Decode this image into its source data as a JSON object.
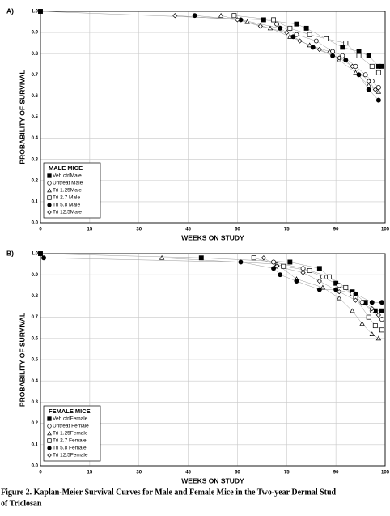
{
  "chart_data": [
    {
      "type": "scatter",
      "label": "A)",
      "xlabel": "WEEKS ON STUDY",
      "ylabel": "PROBABILITY OF SURVIVAL",
      "legend_title": "MALE MICE",
      "legend": "lower left",
      "grid": true,
      "xlim": [
        0,
        105
      ],
      "xticks": [
        0,
        15,
        30,
        45,
        60,
        75,
        90,
        105
      ],
      "ylim": [
        0,
        1
      ],
      "yticks": [
        {
          "value": 0,
          "label": "0.0"
        },
        0.1,
        0.2,
        0.3,
        0.4,
        0.5,
        0.6,
        0.7,
        0.8,
        0.9,
        {
          "value": 1,
          "label": "1.0"
        }
      ],
      "series": [
        {
          "name": "Veh ctrlMale",
          "marker": "square",
          "filled": true,
          "color": "#000",
          "x": [
            0,
            68,
            78,
            81,
            87,
            92,
            97,
            100,
            103,
            104
          ],
          "values": [
            1.0,
            0.96,
            0.94,
            0.92,
            0.87,
            0.83,
            0.81,
            0.79,
            0.74,
            0.74
          ]
        },
        {
          "name": "Untreat Male",
          "marker": "circle",
          "filled": false,
          "color": "#000",
          "x": [
            72,
            78,
            84,
            89,
            92,
            96,
            99,
            101,
            103
          ],
          "values": [
            0.94,
            0.89,
            0.86,
            0.81,
            0.79,
            0.74,
            0.7,
            0.67,
            0.64
          ]
        },
        {
          "name": "Tri 1.25Male",
          "marker": "triangle",
          "filled": false,
          "color": "#000",
          "x": [
            55,
            63,
            70,
            76,
            82,
            88,
            91,
            96,
            100,
            103
          ],
          "values": [
            0.98,
            0.95,
            0.92,
            0.88,
            0.84,
            0.81,
            0.77,
            0.71,
            0.65,
            0.62
          ]
        },
        {
          "name": "Tri 2.7 Male",
          "marker": "square",
          "filled": false,
          "color": "#000",
          "x": [
            59,
            71,
            76,
            82,
            87,
            93,
            97,
            101,
            103
          ],
          "values": [
            0.98,
            0.96,
            0.92,
            0.89,
            0.87,
            0.85,
            0.79,
            0.74,
            0.71
          ]
        },
        {
          "name": "Tri 5.8 Male",
          "marker": "circle",
          "filled": true,
          "color": "#000",
          "x": [
            47,
            61,
            73,
            77,
            83,
            89,
            93,
            97,
            100,
            103
          ],
          "values": [
            0.98,
            0.96,
            0.92,
            0.88,
            0.83,
            0.79,
            0.77,
            0.7,
            0.63,
            0.58
          ]
        },
        {
          "name": "Tri 12.5Male",
          "marker": "diamond",
          "filled": false,
          "color": "#000",
          "x": [
            41,
            60,
            67,
            75,
            79,
            85,
            91,
            95,
            100,
            102
          ],
          "values": [
            0.98,
            0.96,
            0.93,
            0.9,
            0.86,
            0.82,
            0.78,
            0.74,
            0.67,
            0.63
          ]
        }
      ]
    },
    {
      "type": "scatter",
      "label": "B)",
      "xlabel": "WEEKS ON STUDY",
      "ylabel": "PROBABILITY OF SURVIVAL",
      "legend_title": "FEMALE MICE",
      "legend": "lower left",
      "grid": true,
      "xlim": [
        0,
        105
      ],
      "xticks": [
        0,
        15,
        30,
        45,
        60,
        75,
        90,
        105
      ],
      "ylim": [
        0,
        1
      ],
      "yticks": [
        {
          "value": 0,
          "label": "0.0"
        },
        0.1,
        0.2,
        0.3,
        0.4,
        0.5,
        0.6,
        0.7,
        0.8,
        0.9,
        {
          "value": 1,
          "label": "1.0"
        }
      ],
      "series": [
        {
          "name": "Veh ctrlFemale",
          "marker": "square",
          "filled": true,
          "color": "#000",
          "x": [
            0,
            49,
            76,
            85,
            88,
            90,
            95,
            99,
            102,
            104
          ],
          "values": [
            1.0,
            0.98,
            0.96,
            0.93,
            0.89,
            0.86,
            0.82,
            0.77,
            0.73,
            0.73
          ]
        },
        {
          "name": "Untreat Female",
          "marker": "circle",
          "filled": false,
          "color": "#000",
          "x": [
            71,
            80,
            86,
            91,
            95,
            98,
            101,
            104
          ],
          "values": [
            0.96,
            0.93,
            0.89,
            0.85,
            0.81,
            0.77,
            0.73,
            0.69
          ]
        },
        {
          "name": "Tri 1.25Female",
          "marker": "triangle",
          "filled": false,
          "color": "#000",
          "x": [
            37,
            72,
            78,
            86,
            91,
            95,
            98,
            101,
            103
          ],
          "values": [
            0.98,
            0.95,
            0.88,
            0.84,
            0.79,
            0.73,
            0.67,
            0.62,
            0.6
          ]
        },
        {
          "name": "Tri 2.7 Female",
          "marker": "square",
          "filled": false,
          "color": "#000",
          "x": [
            65,
            74,
            82,
            88,
            93,
            96,
            100,
            102,
            104
          ],
          "values": [
            0.98,
            0.94,
            0.92,
            0.89,
            0.84,
            0.79,
            0.7,
            0.66,
            0.64
          ]
        },
        {
          "name": "Tri 5.8 Female",
          "marker": "circle",
          "filled": true,
          "color": "#000",
          "x": [
            1,
            61,
            71,
            73,
            78,
            85,
            90,
            96,
            101,
            104
          ],
          "values": [
            0.98,
            0.96,
            0.93,
            0.9,
            0.87,
            0.83,
            0.83,
            0.81,
            0.77,
            0.77
          ]
        },
        {
          "name": "Tri 12.5Female",
          "marker": "diamond",
          "filled": false,
          "color": "#000",
          "x": [
            68,
            72,
            80,
            85,
            91,
            96,
            101,
            103
          ],
          "values": [
            0.98,
            0.94,
            0.91,
            0.87,
            0.82,
            0.78,
            0.74,
            0.71
          ]
        }
      ]
    }
  ],
  "caption": [
    "Figure 2. Kaplan-Meier Survival Curves for Male and Female Mice in the Two-year Dermal Stud",
    "of Triclosan"
  ]
}
